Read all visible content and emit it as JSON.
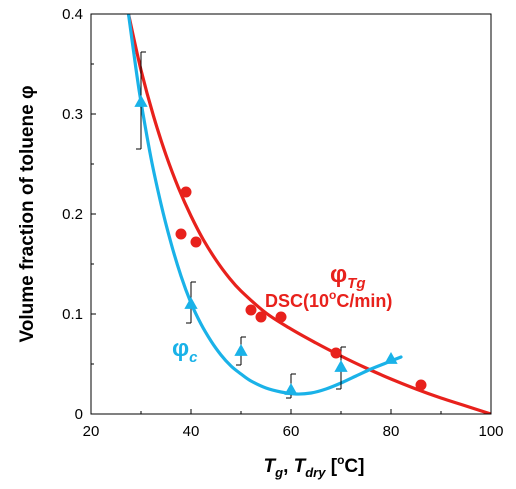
{
  "chart_data": {
    "type": "scatter",
    "xlim": [
      20,
      100
    ],
    "ylim": [
      0,
      0.4
    ],
    "x_ticks": [
      "20",
      "40",
      "60",
      "80",
      "100"
    ],
    "y_ticks": [
      "0",
      "0.1",
      "0.2",
      "0.3",
      "0.4"
    ],
    "x_tick_values": [
      20,
      40,
      60,
      80,
      100
    ],
    "y_tick_values": [
      0,
      0.1,
      0.2,
      0.3,
      0.4
    ],
    "xlabel": {
      "t": "T",
      "t_sub": "g",
      "sep": ", ",
      "t2": "T",
      "t2_sub": "dry",
      "unit_open": " [",
      "unit_sup": "o",
      "unit_close": "C]"
    },
    "ylabel": "Volume fraction of toluene φ",
    "grid": false,
    "series": [
      {
        "marker": "circle",
        "color": "#e8211c",
        "points": [
          {
            "x": 38,
            "y": 0.18
          },
          {
            "x": 39,
            "y": 0.222
          },
          {
            "x": 41,
            "y": 0.172
          },
          {
            "x": 52,
            "y": 0.104
          },
          {
            "x": 54,
            "y": 0.097
          },
          {
            "x": 58,
            "y": 0.097
          },
          {
            "x": 69,
            "y": 0.061
          },
          {
            "x": 86,
            "y": 0.029
          }
        ],
        "fit_curve": [
          {
            "x": 27.5,
            "y": 0.4
          },
          {
            "x": 30,
            "y": 0.344
          },
          {
            "x": 32.5,
            "y": 0.298
          },
          {
            "x": 35,
            "y": 0.259
          },
          {
            "x": 37.5,
            "y": 0.226
          },
          {
            "x": 40,
            "y": 0.198
          },
          {
            "x": 42.5,
            "y": 0.174
          },
          {
            "x": 45,
            "y": 0.154
          },
          {
            "x": 47.5,
            "y": 0.137
          },
          {
            "x": 50,
            "y": 0.123
          },
          {
            "x": 55,
            "y": 0.101
          },
          {
            "x": 60,
            "y": 0.085
          },
          {
            "x": 65,
            "y": 0.071
          },
          {
            "x": 70,
            "y": 0.058
          },
          {
            "x": 75,
            "y": 0.046
          },
          {
            "x": 80,
            "y": 0.035
          },
          {
            "x": 85,
            "y": 0.025
          },
          {
            "x": 90,
            "y": 0.016
          },
          {
            "x": 95,
            "y": 0.008
          },
          {
            "x": 100,
            "y": 0.0
          }
        ],
        "annotation": {
          "phi": "φ",
          "sub": "Tg",
          "text": "DSC(10",
          "sup": "o",
          "text_end": "C/min)"
        }
      },
      {
        "marker": "triangle",
        "color": "#1ab2e8",
        "points": [
          {
            "x": 30,
            "y": 0.312,
            "err_low": 0.265,
            "err_high": 0.362
          },
          {
            "x": 40,
            "y": 0.11,
            "err_low": 0.091,
            "err_high": 0.132
          },
          {
            "x": 50,
            "y": 0.063,
            "err_low": 0.049,
            "err_high": 0.077
          },
          {
            "x": 60,
            "y": 0.024,
            "err_low": 0.016,
            "err_high": 0.04
          },
          {
            "x": 70,
            "y": 0.047,
            "err_low": 0.025,
            "err_high": 0.067
          },
          {
            "x": 80,
            "y": 0.055
          }
        ],
        "fit_curve": [
          {
            "x": 27.5,
            "y": 0.4
          },
          {
            "x": 29,
            "y": 0.345
          },
          {
            "x": 30,
            "y": 0.312
          },
          {
            "x": 32,
            "y": 0.256
          },
          {
            "x": 34,
            "y": 0.21
          },
          {
            "x": 36,
            "y": 0.171
          },
          {
            "x": 38,
            "y": 0.138
          },
          {
            "x": 40,
            "y": 0.111
          },
          {
            "x": 42,
            "y": 0.09
          },
          {
            "x": 44,
            "y": 0.073
          },
          {
            "x": 46,
            "y": 0.059
          },
          {
            "x": 48,
            "y": 0.048
          },
          {
            "x": 50,
            "y": 0.04
          },
          {
            "x": 52,
            "y": 0.033
          },
          {
            "x": 55,
            "y": 0.026
          },
          {
            "x": 58,
            "y": 0.022
          },
          {
            "x": 61,
            "y": 0.02
          },
          {
            "x": 64,
            "y": 0.021
          },
          {
            "x": 67,
            "y": 0.025
          },
          {
            "x": 70,
            "y": 0.031
          },
          {
            "x": 73,
            "y": 0.038
          },
          {
            "x": 76,
            "y": 0.045
          },
          {
            "x": 79,
            "y": 0.051
          },
          {
            "x": 82,
            "y": 0.057
          }
        ],
        "annotation": {
          "phi": "φ",
          "sub": "c"
        }
      }
    ]
  }
}
